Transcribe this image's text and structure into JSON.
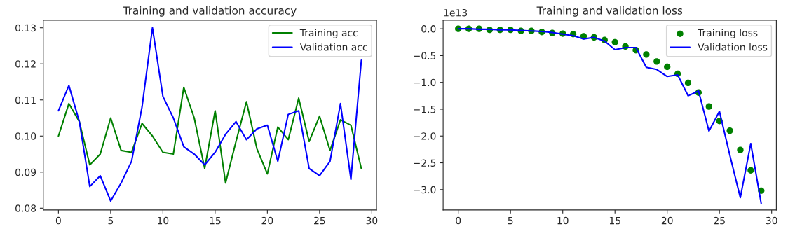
{
  "chart_data": [
    {
      "type": "line",
      "title": "Training and validation accuracy",
      "x": [
        0,
        1,
        2,
        3,
        4,
        5,
        6,
        7,
        8,
        9,
        10,
        11,
        12,
        13,
        14,
        15,
        16,
        17,
        18,
        19,
        20,
        21,
        22,
        23,
        24,
        25,
        26,
        27,
        28,
        29
      ],
      "series": [
        {
          "name": "Training acc",
          "color": "#008000",
          "values": [
            0.1,
            0.109,
            0.104,
            0.092,
            0.095,
            0.105,
            0.096,
            0.0955,
            0.1035,
            0.1,
            0.0955,
            0.095,
            0.1135,
            0.105,
            0.091,
            0.107,
            0.087,
            0.0985,
            0.1095,
            0.0965,
            0.0895,
            0.1025,
            0.099,
            0.1105,
            0.0985,
            0.1055,
            0.096,
            0.1045,
            0.103,
            0.091
          ]
        },
        {
          "name": "Validation acc",
          "color": "#0000ff",
          "values": [
            0.107,
            0.114,
            0.104,
            0.086,
            0.089,
            0.082,
            0.087,
            0.093,
            0.108,
            0.13,
            0.111,
            0.105,
            0.097,
            0.095,
            0.092,
            0.0955,
            0.1005,
            0.104,
            0.099,
            0.102,
            0.103,
            0.093,
            0.106,
            0.107,
            0.091,
            0.089,
            0.093,
            0.109,
            0.088,
            0.121
          ]
        }
      ],
      "xlim": [
        -1.45,
        30.45
      ],
      "ylim": [
        0.0795,
        0.1321
      ],
      "xticks": [
        0,
        5,
        10,
        15,
        20,
        25,
        30
      ],
      "yticks": [
        {
          "value": 0.08,
          "label": "0.08"
        },
        {
          "value": 0.09,
          "label": "0.09"
        },
        {
          "value": 0.1,
          "label": "0.10"
        },
        {
          "value": 0.11,
          "label": "0.11"
        },
        {
          "value": 0.12,
          "label": "0.12"
        },
        {
          "value": 0.13,
          "label": "0.13"
        }
      ],
      "legend": "top right",
      "grid": false
    },
    {
      "type": "line",
      "title": "Training and validation loss",
      "x": [
        0,
        1,
        2,
        3,
        4,
        5,
        6,
        7,
        8,
        9,
        10,
        11,
        12,
        13,
        14,
        15,
        16,
        17,
        18,
        19,
        20,
        21,
        22,
        23,
        24,
        25,
        26,
        27,
        28,
        29
      ],
      "annotations": [
        "1e13"
      ],
      "series": [
        {
          "name": "Training loss",
          "type": "scatter",
          "marker": "circle",
          "color": "#008000",
          "values": [
            0,
            0,
            0,
            -0.02,
            -0.02,
            -0.02,
            -0.04,
            -0.04,
            -0.06,
            -0.08,
            -0.09,
            -0.1,
            -0.14,
            -0.16,
            -0.21,
            -0.25,
            -0.33,
            -0.4,
            -0.48,
            -0.61,
            -0.71,
            -0.84,
            -1.01,
            -1.19,
            -1.45,
            -1.72,
            -1.9,
            -2.26,
            -2.64,
            -3.02
          ]
        },
        {
          "name": "Validation loss",
          "type": "line",
          "color": "#0000ff",
          "values": [
            0,
            0,
            -0.01,
            -0.01,
            -0.02,
            -0.02,
            -0.03,
            -0.04,
            -0.05,
            -0.07,
            -0.1,
            -0.13,
            -0.19,
            -0.16,
            -0.23,
            -0.39,
            -0.35,
            -0.35,
            -0.72,
            -0.76,
            -0.89,
            -0.86,
            -1.25,
            -1.16,
            -1.91,
            -1.54,
            -2.36,
            -3.15,
            -2.14,
            -3.26
          ]
        }
      ],
      "xlim": [
        -1.45,
        30.45
      ],
      "ylim": [
        -3.38,
        0.16
      ],
      "xticks": [
        0,
        5,
        10,
        15,
        20,
        25,
        30
      ],
      "yticks": [
        {
          "value": 0,
          "label": "0.0"
        },
        {
          "value": -0.5,
          "label": "−0.5"
        },
        {
          "value": -1,
          "label": "−1.0"
        },
        {
          "value": -1.5,
          "label": "−1.5"
        },
        {
          "value": -2,
          "label": "−2.0"
        },
        {
          "value": -2.5,
          "label": "−2.5"
        },
        {
          "value": -3,
          "label": "−3.0"
        }
      ],
      "legend": "top right",
      "grid": false
    }
  ]
}
